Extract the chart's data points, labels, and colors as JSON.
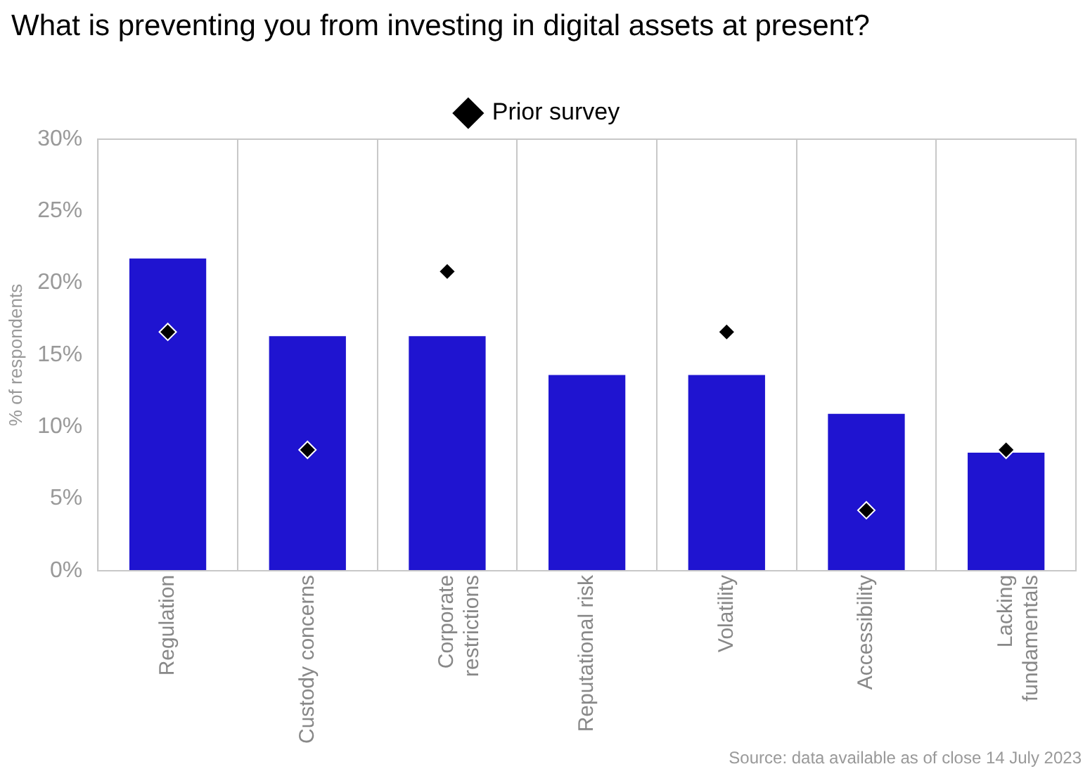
{
  "chart_data": {
    "type": "bar",
    "title": "What is preventing you from investing in digital assets at present?",
    "ylabel": "% of respondents",
    "categories": [
      "Regulation",
      "Custody concerns",
      "Corporate restrictions",
      "Reputational risk",
      "Volatility",
      "Accessibility",
      "Lacking fundamentals"
    ],
    "series": [
      {
        "color": "#1f14d0",
        "values": [
          21.7,
          16.3,
          16.3,
          13.6,
          13.6,
          10.9,
          8.2
        ]
      },
      {
        "type": "scatter",
        "name": "Prior survey",
        "color": "#000000",
        "values": [
          16.6,
          8.4,
          20.8,
          null,
          16.6,
          4.2,
          8.4
        ]
      }
    ],
    "marker": "diamond",
    "ylim": [
      0,
      30
    ],
    "yticks": [
      {
        "value": 0,
        "label": "0%"
      },
      {
        "value": 5,
        "label": "5%"
      },
      {
        "value": 10,
        "label": "10%"
      },
      {
        "value": 15,
        "label": "15%"
      },
      {
        "value": 20,
        "label": "20%"
      },
      {
        "value": 25,
        "label": "25%"
      },
      {
        "value": 30,
        "label": "30%"
      }
    ],
    "grid": "x",
    "legend": "top",
    "annotations": [
      "Source: data available as of close 14 July 2023"
    ]
  }
}
